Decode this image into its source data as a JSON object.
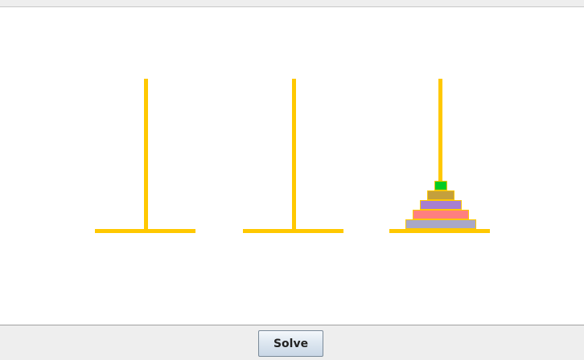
{
  "controls": {
    "solve_label": "Solve"
  },
  "game": {
    "peg_count": 3,
    "disk_count": 5,
    "pegs": [
      {
        "name": "left",
        "disks": []
      },
      {
        "name": "middle",
        "disks": []
      },
      {
        "name": "right",
        "disks": [
          5,
          4,
          3,
          2,
          1
        ]
      }
    ]
  },
  "colors": {
    "peg": "#ffc800",
    "board_background": "#ffffff",
    "panel_background": "#eeeeee",
    "disk_1": "#00cc22",
    "disk_2": "#c4a03c",
    "disk_3": "#a77fd0",
    "disk_4": "#ff7f7f",
    "disk_5": "#a8a8c8"
  }
}
